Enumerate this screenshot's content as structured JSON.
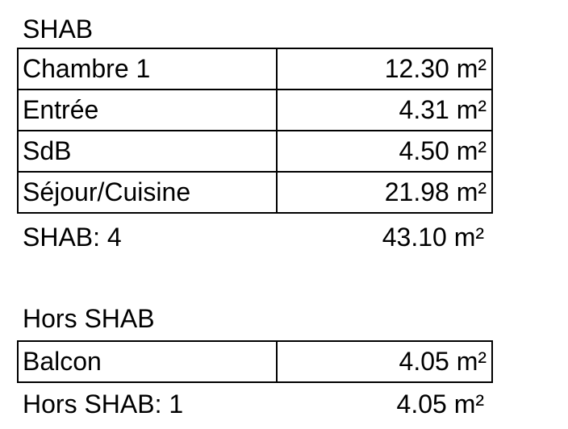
{
  "page": {
    "background_color": "#ffffff",
    "text_color": "#000000",
    "border_color": "#000000"
  },
  "sections": [
    {
      "title": "SHAB",
      "rows": [
        {
          "label": "Chambre 1",
          "value": "12.30 m²"
        },
        {
          "label": "Entrée",
          "value": "4.31 m²"
        },
        {
          "label": "SdB",
          "value": "4.50 m²"
        },
        {
          "label": "Séjour/Cuisine",
          "value": "21.98 m²"
        }
      ],
      "summary": {
        "label": "SHAB: 4",
        "value": "43.10 m²"
      }
    },
    {
      "title": "Hors SHAB",
      "rows": [
        {
          "label": "Balcon",
          "value": "4.05 m²"
        }
      ],
      "summary": {
        "label": "Hors SHAB: 1",
        "value": "4.05 m²"
      }
    }
  ]
}
